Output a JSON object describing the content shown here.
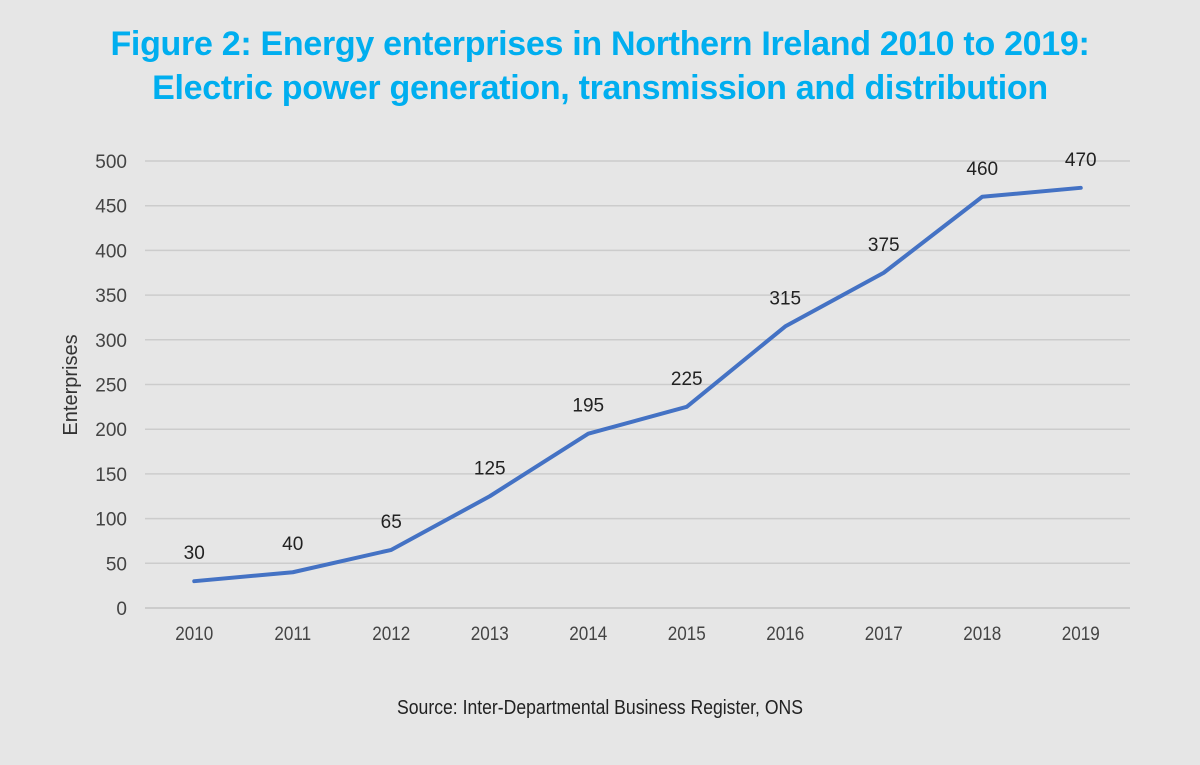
{
  "chart_data": {
    "type": "line",
    "title": "Figure 2: Energy enterprises in Northern Ireland 2010 to 2019:",
    "subtitle": "Electric power generation, transmission and distribution",
    "xlabel": "",
    "ylabel": "Enterprises",
    "categories": [
      "2010",
      "2011",
      "2012",
      "2013",
      "2014",
      "2015",
      "2016",
      "2017",
      "2018",
      "2019"
    ],
    "series": [
      {
        "name": "Enterprises",
        "values": [
          30,
          40,
          65,
          125,
          195,
          225,
          315,
          375,
          460,
          470
        ],
        "color": "#4472c4"
      }
    ],
    "data_labels": [
      "30",
      "40",
      "65",
      "125",
      "195",
      "225",
      "315",
      "375",
      "460",
      "470"
    ],
    "ylim": [
      0,
      500
    ],
    "yticks": [
      0,
      50,
      100,
      150,
      200,
      250,
      300,
      350,
      400,
      450,
      500
    ],
    "grid": true,
    "legend": "none",
    "source": "Source: Inter-Departmental Business Register, ONS"
  },
  "colors": {
    "title": "#00aeef",
    "line": "#4472c4",
    "grid": "#cccccc",
    "background": "#e6e6e6"
  }
}
